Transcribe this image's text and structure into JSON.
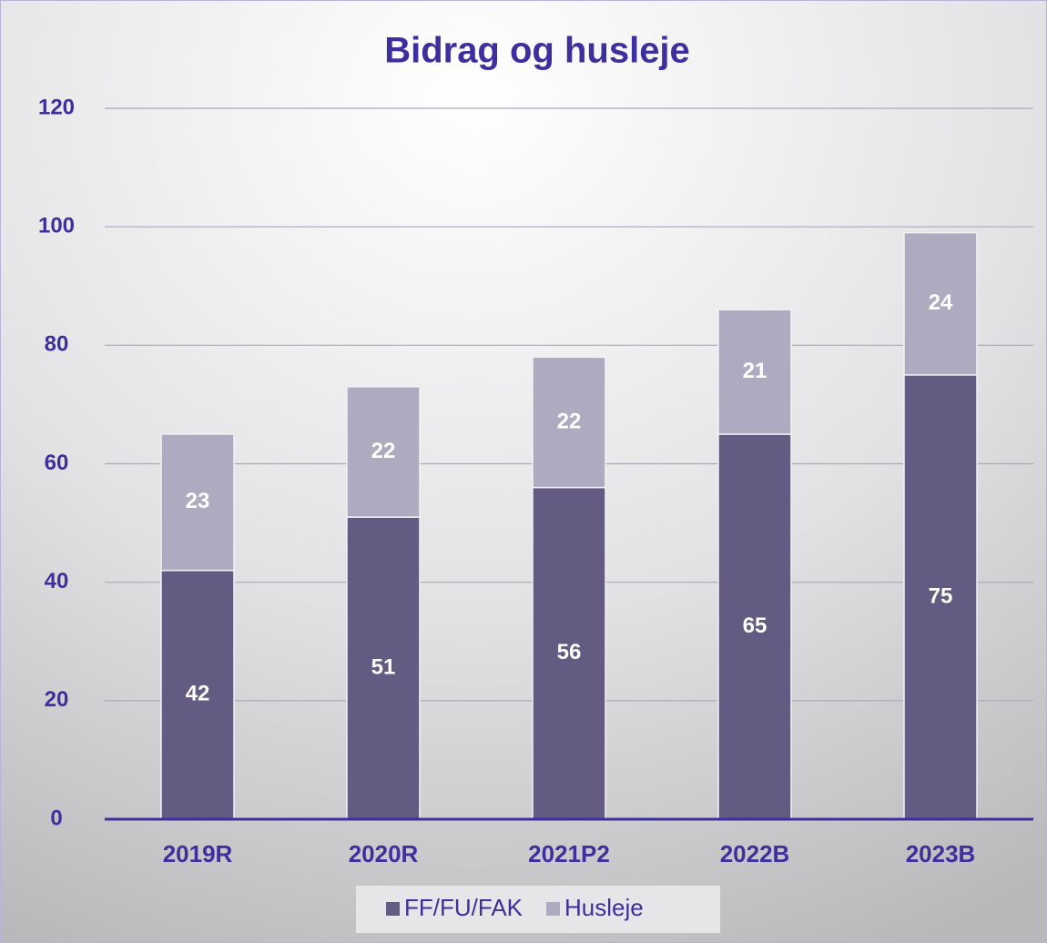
{
  "chart_data": {
    "type": "stacked_bar",
    "title": "Bidrag og husleje",
    "categories": [
      "2019R",
      "2020R",
      "2021P2",
      "2022B",
      "2023B"
    ],
    "series": [
      {
        "name": "FF/FU/FAK",
        "color": "#635b82",
        "values": [
          42,
          51,
          56,
          65,
          75
        ]
      },
      {
        "name": "Husleje",
        "color": "#aeaac0",
        "values": [
          23,
          22,
          22,
          21,
          24
        ]
      }
    ],
    "ylim": [
      0,
      120
    ],
    "yticks": [
      0,
      20,
      40,
      60,
      80,
      100,
      120
    ],
    "grid": true,
    "legend": "bottom"
  }
}
